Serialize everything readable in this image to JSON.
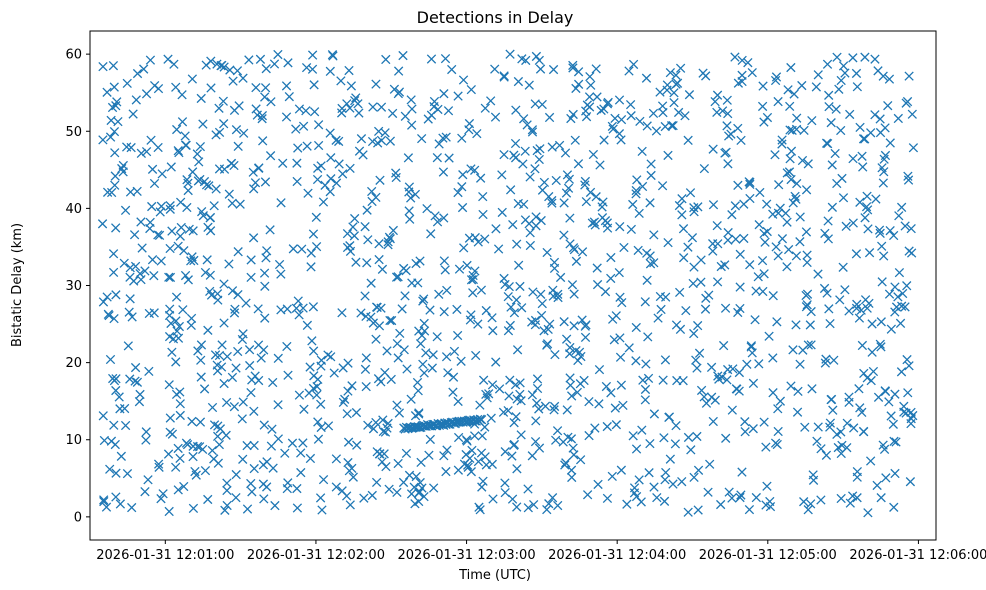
{
  "chart_data": {
    "type": "scatter",
    "title": "Detections in Delay",
    "xlabel": "Time (UTC)",
    "ylabel": "Bistatic Delay (km)",
    "marker": "x",
    "color": "#1f77b4",
    "grid": false,
    "xlim": [
      "2026-01-31 12:00:30",
      "2026-01-31 12:06:07"
    ],
    "ylim": [
      -3,
      63
    ],
    "x_ticks": [
      "2026-01-31 12:01:00",
      "2026-01-31 12:02:00",
      "2026-01-31 12:03:00",
      "2026-01-31 12:04:00",
      "2026-01-31 12:05:00",
      "2026-01-31 12:06:00"
    ],
    "y_ticks": [
      0,
      10,
      20,
      30,
      40,
      50,
      60
    ],
    "x_range": [
      "2026-01-31 12:00:35",
      "2026-01-31 12:05:58"
    ],
    "y_range": [
      0.5,
      60
    ],
    "track": {
      "x_start": "2026-01-31 12:02:35",
      "x_end": "2026-01-31 12:03:06",
      "y_start": 11.5,
      "y_end": 12.6
    },
    "x": [
      "2026-01-31 12:00:35",
      "2026-01-31 12:01:20",
      "2026-01-31 12:02:05",
      "2026-01-31 12:02:50",
      "2026-01-31 12:03:35",
      "2026-01-31 12:04:20",
      "2026-01-31 12:05:05",
      "2026-01-31 12:05:50"
    ],
    "y": [
      38.0,
      21.0,
      11.8,
      12.1,
      33.0,
      56.0,
      15.0,
      12.0
    ]
  }
}
